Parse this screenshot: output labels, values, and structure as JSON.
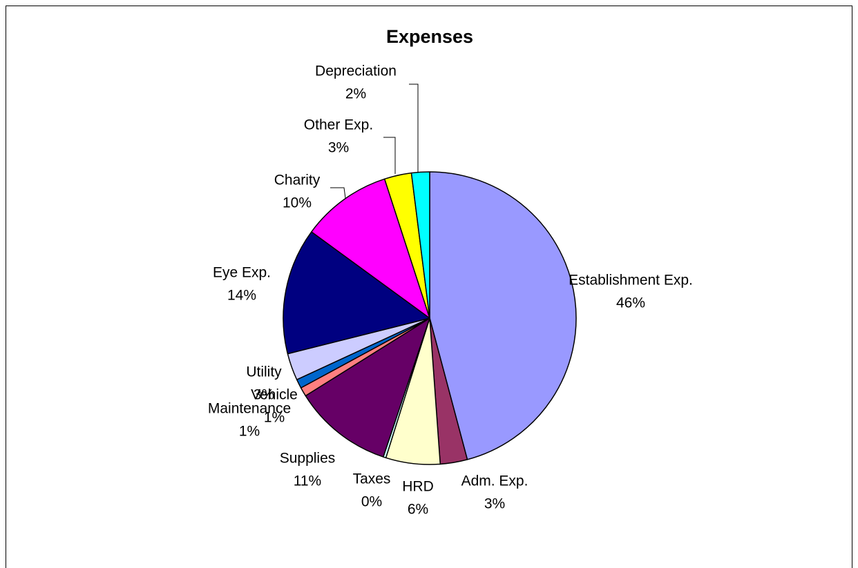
{
  "chart_data": {
    "type": "pie",
    "title": "Expenses",
    "categories": [
      "Establishment Exp.",
      "Adm. Exp.",
      "HRD",
      "Taxes",
      "Supplies",
      "Maintenance",
      "Vehicle",
      "Utility",
      "Eye Exp.",
      "Charity",
      "Other Exp.",
      "Depreciation"
    ],
    "values": [
      46,
      3,
      6,
      0.3,
      11,
      1,
      1,
      3,
      14,
      10,
      3,
      2
    ],
    "value_labels": [
      "46%",
      "3%",
      "6%",
      "0%",
      "11%",
      "1%",
      "1%",
      "3%",
      "14%",
      "10%",
      "3%",
      "2%"
    ],
    "colors": [
      "#9999ff",
      "#993366",
      "#ffffcc",
      "#ccffff",
      "#660066",
      "#ff8080",
      "#0066cc",
      "#ccccff",
      "#000080",
      "#ff00ff",
      "#ffff00",
      "#00ffff"
    ]
  }
}
